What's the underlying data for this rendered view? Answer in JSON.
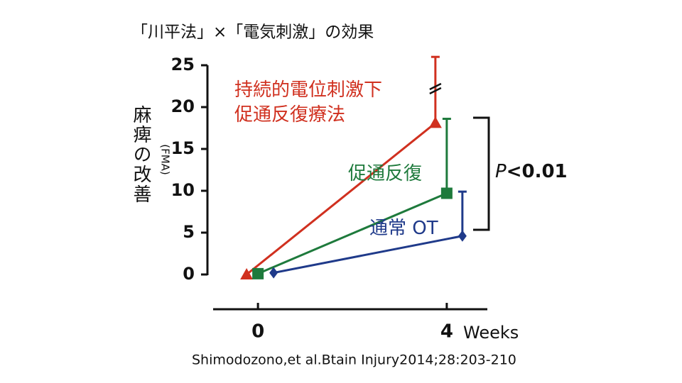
{
  "chart_data": {
    "type": "line",
    "title": "「川平法」×「電気刺激」の効果",
    "y_label": "麻痺の改善",
    "y_sublabel": "(FMA)",
    "x_label": "Weeks",
    "source": "Shimodozono,et al.Btain Injury2014;28:203-210",
    "x": [
      0,
      4
    ],
    "xticks": [
      0,
      4
    ],
    "xlim": [
      -0.95,
      4.86
    ],
    "ylim": [
      0,
      25
    ],
    "yticks": [
      0,
      5,
      10,
      15,
      20,
      25
    ],
    "series": [
      {
        "name": "持続的電位刺激下\n促通反復療法",
        "color": "#d0301f",
        "marker": "triangle",
        "values": [
          0,
          18.1
        ],
        "errors": [
          null,
          7.9
        ]
      },
      {
        "name": "促通反復",
        "color": "#1e7a3c",
        "marker": "square",
        "values": [
          0.1,
          9.7
        ],
        "errors": [
          null,
          8.9
        ]
      },
      {
        "name": "通常 OT",
        "color": "#1f3a8a",
        "marker": "diamond",
        "values": [
          0.2,
          4.6
        ],
        "errors": [
          null,
          5.3
        ]
      }
    ],
    "annotation": {
      "p_symbol": "P",
      "p_value": "<0.01"
    }
  }
}
